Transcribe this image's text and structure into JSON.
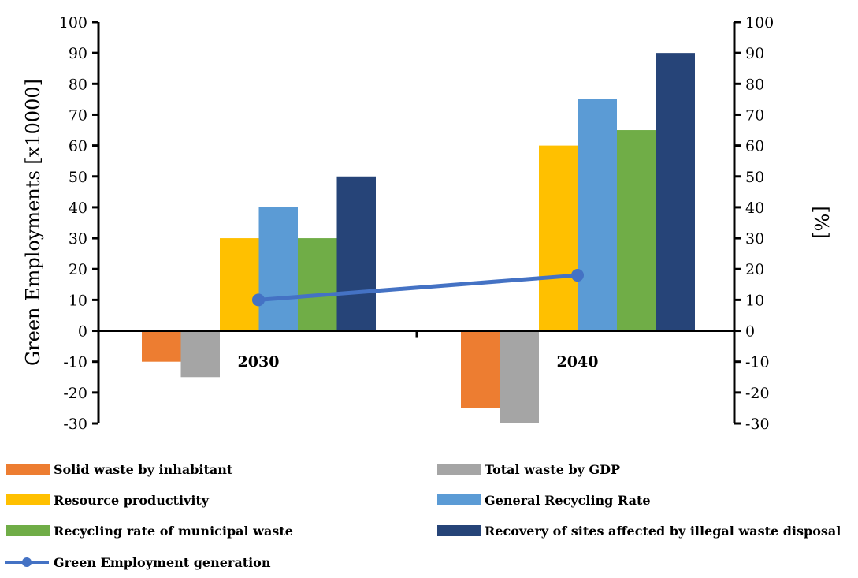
{
  "chart_data": {
    "type": "bar",
    "categories": [
      "2030",
      "2040"
    ],
    "series": [
      {
        "name": "Solid waste by inhabitant",
        "values": [
          -10,
          -25
        ],
        "color": "#ED7D31"
      },
      {
        "name": "Total waste by GDP",
        "values": [
          -15,
          -30
        ],
        "color": "#A5A5A5"
      },
      {
        "name": "Resource productivity",
        "values": [
          30,
          60
        ],
        "color": "#FFC000"
      },
      {
        "name": "General Recycling Rate",
        "values": [
          40,
          75
        ],
        "color": "#5B9BD5"
      },
      {
        "name": "Recycling rate of municipal waste",
        "values": [
          30,
          65
        ],
        "color": "#70AD47"
      },
      {
        "name": "Recovery of sites affected by illegal waste disposal",
        "values": [
          50,
          90
        ],
        "color": "#264478"
      }
    ],
    "line_series": {
      "name": "Green Employment generation",
      "type": "line",
      "axis": "left",
      "values": [
        10,
        18
      ],
      "color": "#4472C4"
    },
    "ylabel": "Green Employments [x10000]",
    "y2label": "[%]",
    "ylim": [
      -30,
      100
    ],
    "y2lim": [
      -30,
      100
    ],
    "yticks": [
      "100",
      "90",
      "80",
      "70",
      "60",
      "50",
      "40",
      "30",
      "20",
      "10",
      "0",
      "-10",
      "-20",
      "-30"
    ],
    "grid": false,
    "legend_position": "bottom"
  }
}
